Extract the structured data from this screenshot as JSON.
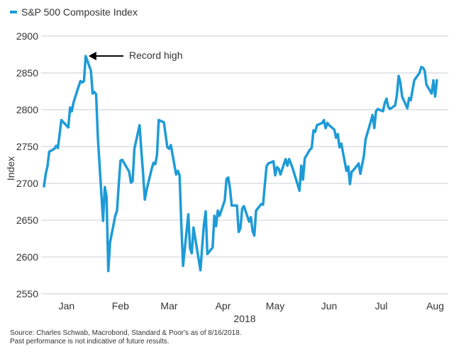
{
  "colors": {
    "series": "#1e9bd7",
    "grid": "#c8cdd6",
    "axis": "#333333",
    "annotation": "#000000"
  },
  "chart_data": {
    "type": "line",
    "title": "",
    "xlabel": "2018",
    "ylabel": "Index",
    "ylim": [
      2550,
      2900
    ],
    "yticks": [
      2550,
      2600,
      2650,
      2700,
      2750,
      2800,
      2850,
      2900
    ],
    "grid": "horizontal",
    "legend_position": "top-left",
    "x_month_labels": [
      "Jan",
      "Feb",
      "Mar",
      "Apr",
      "May",
      "Jun",
      "Jul",
      "Aug"
    ],
    "annotation": {
      "text": "Record high",
      "target_date": "2018-01-26",
      "target_value": 2873
    },
    "series": [
      {
        "name": "S&P 500 Composite Index",
        "x": [
          "2018-01-02",
          "2018-01-03",
          "2018-01-04",
          "2018-01-05",
          "2018-01-08",
          "2018-01-09",
          "2018-01-10",
          "2018-01-11",
          "2018-01-12",
          "2018-01-16",
          "2018-01-17",
          "2018-01-18",
          "2018-01-19",
          "2018-01-22",
          "2018-01-23",
          "2018-01-24",
          "2018-01-25",
          "2018-01-26",
          "2018-01-29",
          "2018-01-30",
          "2018-01-31",
          "2018-02-01",
          "2018-02-02",
          "2018-02-05",
          "2018-02-06",
          "2018-02-07",
          "2018-02-08",
          "2018-02-09",
          "2018-02-12",
          "2018-02-13",
          "2018-02-14",
          "2018-02-15",
          "2018-02-16",
          "2018-02-20",
          "2018-02-21",
          "2018-02-22",
          "2018-02-23",
          "2018-02-26",
          "2018-02-27",
          "2018-02-28",
          "2018-03-01",
          "2018-03-02",
          "2018-03-05",
          "2018-03-06",
          "2018-03-07",
          "2018-03-08",
          "2018-03-09",
          "2018-03-12",
          "2018-03-13",
          "2018-03-14",
          "2018-03-15",
          "2018-03-16",
          "2018-03-19",
          "2018-03-20",
          "2018-03-21",
          "2018-03-22",
          "2018-03-23",
          "2018-03-26",
          "2018-03-27",
          "2018-03-28",
          "2018-03-29",
          "2018-04-02",
          "2018-04-03",
          "2018-04-04",
          "2018-04-05",
          "2018-04-06",
          "2018-04-09",
          "2018-04-10",
          "2018-04-11",
          "2018-04-12",
          "2018-04-13",
          "2018-04-16",
          "2018-04-17",
          "2018-04-18",
          "2018-04-19",
          "2018-04-20",
          "2018-04-23",
          "2018-04-24",
          "2018-04-25",
          "2018-04-26",
          "2018-04-27",
          "2018-04-30",
          "2018-05-01",
          "2018-05-02",
          "2018-05-03",
          "2018-05-04",
          "2018-05-07",
          "2018-05-08",
          "2018-05-09",
          "2018-05-10",
          "2018-05-11",
          "2018-05-14",
          "2018-05-15",
          "2018-05-16",
          "2018-05-17",
          "2018-05-18",
          "2018-05-21",
          "2018-05-22",
          "2018-05-23",
          "2018-05-24",
          "2018-05-25",
          "2018-05-29",
          "2018-05-30",
          "2018-05-31",
          "2018-06-01",
          "2018-06-04",
          "2018-06-05",
          "2018-06-06",
          "2018-06-07",
          "2018-06-08",
          "2018-06-11",
          "2018-06-12",
          "2018-06-13",
          "2018-06-14",
          "2018-06-15",
          "2018-06-18",
          "2018-06-19",
          "2018-06-20",
          "2018-06-21",
          "2018-06-22",
          "2018-06-25",
          "2018-06-26",
          "2018-06-27",
          "2018-06-28",
          "2018-06-29",
          "2018-07-02",
          "2018-07-03",
          "2018-07-05",
          "2018-07-06",
          "2018-07-09",
          "2018-07-10",
          "2018-07-11",
          "2018-07-12",
          "2018-07-13",
          "2018-07-16",
          "2018-07-17",
          "2018-07-18",
          "2018-07-19",
          "2018-07-20",
          "2018-07-23",
          "2018-07-24",
          "2018-07-25",
          "2018-07-26",
          "2018-07-27",
          "2018-07-30",
          "2018-07-31",
          "2018-08-01",
          "2018-08-02",
          "2018-08-03",
          "2018-08-06",
          "2018-08-07",
          "2018-08-08",
          "2018-08-09",
          "2018-08-10",
          "2018-08-13",
          "2018-08-14",
          "2018-08-15",
          "2018-08-16"
        ],
        "y": [
          2696,
          2713,
          2723,
          2743,
          2747,
          2751,
          2748,
          2767,
          2786,
          2776,
          2803,
          2798,
          2810,
          2832,
          2839,
          2837,
          2839,
          2873,
          2853,
          2822,
          2824,
          2821,
          2762,
          2649,
          2695,
          2682,
          2581,
          2620,
          2656,
          2663,
          2698,
          2731,
          2732,
          2716,
          2701,
          2703,
          2747,
          2779,
          2744,
          2714,
          2678,
          2691,
          2720,
          2728,
          2726,
          2738,
          2786,
          2783,
          2765,
          2749,
          2747,
          2752,
          2712,
          2717,
          2711,
          2643,
          2588,
          2658,
          2612,
          2605,
          2640,
          2582,
          2614,
          2644,
          2662,
          2604,
          2613,
          2656,
          2642,
          2663,
          2656,
          2677,
          2706,
          2708,
          2693,
          2670,
          2670,
          2634,
          2639,
          2666,
          2669,
          2648,
          2654,
          2635,
          2629,
          2663,
          2672,
          2671,
          2697,
          2723,
          2727,
          2730,
          2711,
          2722,
          2720,
          2712,
          2733,
          2724,
          2733,
          2727,
          2721,
          2690,
          2724,
          2705,
          2734,
          2746,
          2748,
          2772,
          2770,
          2779,
          2782,
          2786,
          2775,
          2782,
          2779,
          2773,
          2762,
          2767,
          2749,
          2754,
          2717,
          2723,
          2699,
          2716,
          2718,
          2727,
          2713,
          2737,
          2760,
          2784,
          2793,
          2775,
          2798,
          2801,
          2798,
          2809,
          2815,
          2804,
          2801,
          2806,
          2820,
          2846,
          2837,
          2818,
          2802,
          2816,
          2813,
          2827,
          2840,
          2850,
          2858,
          2857,
          2853,
          2834,
          2822,
          2840,
          2818,
          2840
        ]
      }
    ]
  },
  "footer": {
    "source": "Source: Charles Schwab, Macrobond, Standard & Poor's as of 8/16/2018.",
    "disclaimer": "Past performance is not indicative of future results."
  }
}
